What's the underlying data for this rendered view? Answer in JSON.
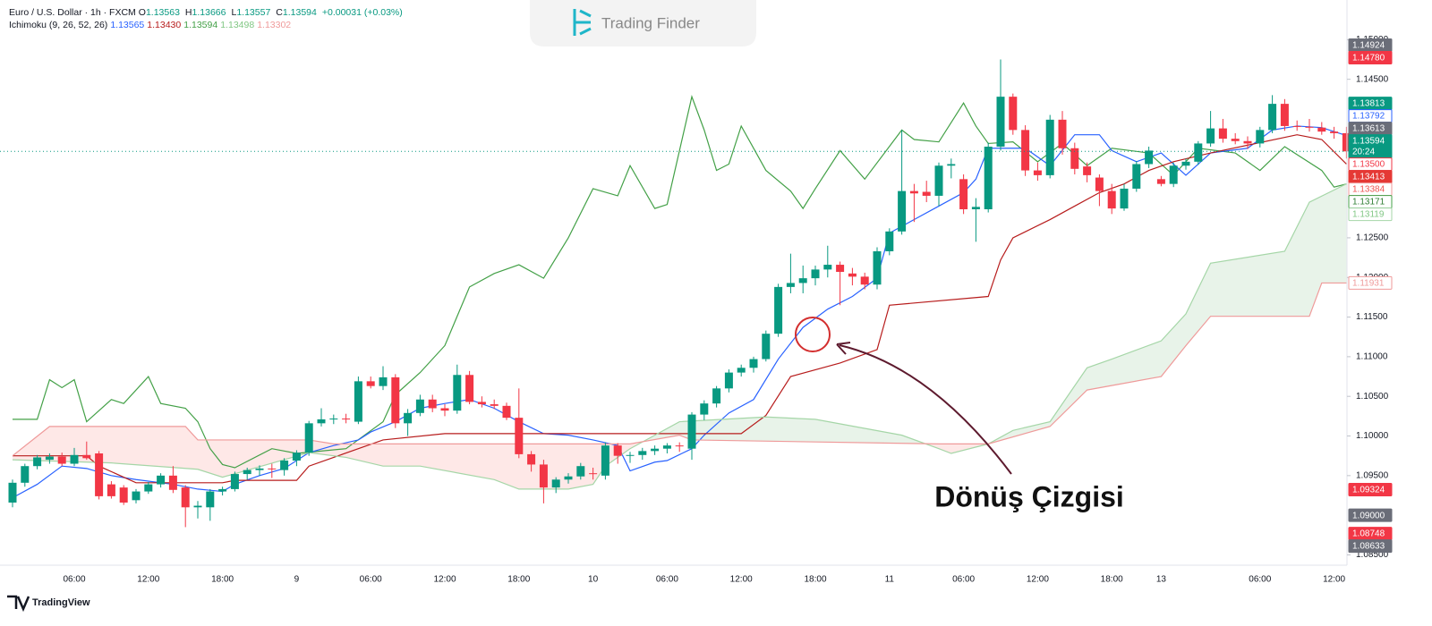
{
  "header": {
    "symbol": "Euro / U.S. Dollar · 1h · FXCM",
    "ohlc": [
      {
        "key": "O",
        "value": "1.13563"
      },
      {
        "key": "H",
        "value": "1.13666"
      },
      {
        "key": "L",
        "value": "1.13557"
      },
      {
        "key": "C",
        "value": "1.13594"
      }
    ],
    "change": "+0.00031 (+0.03%)",
    "change_color": "#089981"
  },
  "indicator": {
    "name": "Ichimoku (9, 26, 52, 26)",
    "values": [
      {
        "text": "1.13565",
        "color": "#2962ff"
      },
      {
        "text": "1.13430",
        "color": "#b71c1c"
      },
      {
        "text": "1.13594",
        "color": "#43a047"
      },
      {
        "text": "1.13498",
        "color": "#81c784"
      },
      {
        "text": "1.13302",
        "color": "#ef9a9a"
      }
    ]
  },
  "watermark": "Trading Finder",
  "footer": "TradingView",
  "chart_data": {
    "type": "candlestick",
    "up_color": "#089981",
    "down_color": "#f23645",
    "categories": [
      null,
      null,
      null,
      null,
      null,
      "06:00",
      null,
      null,
      null,
      null,
      null,
      "12:00",
      null,
      null,
      null,
      null,
      null,
      "18:00",
      null,
      null,
      null,
      null,
      null,
      "9",
      null,
      null,
      null,
      null,
      null,
      "06:00",
      null,
      null,
      null,
      null,
      null,
      "12:00",
      null,
      null,
      null,
      null,
      null,
      "18:00",
      null,
      null,
      null,
      null,
      null,
      "10",
      null,
      null,
      null,
      null,
      null,
      "06:00",
      null,
      null,
      null,
      null,
      null,
      "12:00",
      null,
      null,
      null,
      null,
      null,
      "18:00",
      null,
      null,
      null,
      null,
      null,
      "11",
      null,
      null,
      null,
      null,
      null,
      "06:00",
      null,
      null,
      null,
      null,
      null,
      "12:00",
      null,
      null,
      null,
      null,
      null,
      "18:00",
      null,
      null,
      null,
      "13",
      null,
      null,
      null,
      null,
      null,
      null,
      null,
      "06:00",
      null,
      null,
      null,
      null,
      null,
      "12:00",
      null
    ],
    "open": [
      1.0916,
      1.0941,
      1.0962,
      1.097,
      1.0974,
      1.0965,
      1.0976,
      1.0978,
      1.0939,
      1.0935,
      1.0919,
      1.093,
      1.0939,
      1.095,
      1.0935,
      1.091,
      1.091,
      1.093,
      1.0933,
      1.0952,
      1.0957,
      1.0959,
      1.0957,
      1.0969,
      1.0979,
      1.1016,
      1.1021,
      1.1022,
      1.1018,
      1.1069,
      1.1063,
      1.1074,
      1.1016,
      1.1029,
      1.1046,
      1.1035,
      1.1032,
      1.1077,
      1.1043,
      1.104,
      1.1038,
      1.1023,
      1.0977,
      1.0964,
      1.0935,
      1.0945,
      1.0949,
      1.0953,
      1.095,
      1.0988,
      1.0975,
      1.0976,
      1.0981,
      1.0984,
      1.0988,
      1.0984,
      1.1027,
      1.1041,
      1.106,
      1.108,
      1.1086,
      1.1097,
      1.1129,
      1.1188,
      1.1193,
      1.1199,
      1.121,
      1.1216,
      1.1205,
      1.1201,
      1.1191,
      1.1233,
      1.1258,
      1.1309,
      1.1308,
      1.1303,
      1.1341,
      1.1324,
      1.1286,
      1.1286,
      1.1365,
      1.1428,
      1.1386,
      1.1335,
      1.1329,
      1.1399,
      1.1363,
      1.134,
      1.1326,
      1.1309,
      1.1287,
      1.1312,
      1.1343,
      1.1324,
      1.1318,
      1.1341,
      1.1346,
      1.1369,
      1.1388,
      1.1375,
      1.1372,
      1.1369,
      1.1386,
      1.1419,
      1.1391,
      1.139,
      1.1389,
      1.1384,
      1.1382
    ],
    "high": [
      1.0945,
      1.0965,
      1.0976,
      1.0978,
      1.0979,
      1.0985,
      1.0993,
      1.0981,
      1.0943,
      1.0938,
      1.0933,
      1.0942,
      1.0953,
      1.0962,
      1.0938,
      1.0918,
      1.0933,
      1.0936,
      1.0955,
      1.096,
      1.0963,
      1.0965,
      1.0972,
      1.0982,
      1.1019,
      1.1035,
      1.1027,
      1.1028,
      1.1075,
      1.1075,
      1.1088,
      1.1078,
      1.1034,
      1.1052,
      1.1052,
      1.104,
      1.109,
      1.1082,
      1.105,
      1.1046,
      1.1042,
      1.106,
      1.0981,
      1.097,
      1.0948,
      1.0953,
      1.0966,
      1.096,
      1.0992,
      1.0991,
      1.098,
      1.0985,
      1.0988,
      1.0991,
      1.0992,
      1.103,
      1.1045,
      1.1063,
      1.1084,
      1.109,
      1.11,
      1.1133,
      1.1192,
      1.123,
      1.1215,
      1.1215,
      1.124,
      1.122,
      1.1212,
      1.1206,
      1.1238,
      1.1262,
      1.1386,
      1.1318,
      1.1322,
      1.1345,
      1.135,
      1.133,
      1.13,
      1.137,
      1.1475,
      1.1432,
      1.1392,
      1.1345,
      1.1405,
      1.141,
      1.137,
      1.1345,
      1.133,
      1.1318,
      1.1318,
      1.1347,
      1.1365,
      1.1328,
      1.1345,
      1.135,
      1.1372,
      1.141,
      1.14,
      1.1382,
      1.1378,
      1.139,
      1.143,
      1.1425,
      1.1398,
      1.14,
      1.1396,
      1.139,
      1.139
    ],
    "low": [
      1.091,
      1.0936,
      1.0958,
      1.0965,
      1.0962,
      1.0962,
      1.097,
      1.092,
      1.0921,
      1.0913,
      1.0915,
      1.0927,
      1.0935,
      1.0928,
      1.0885,
      1.0896,
      1.0893,
      1.0925,
      1.093,
      1.0945,
      1.095,
      1.0947,
      1.095,
      1.0962,
      1.0975,
      1.1012,
      1.1015,
      1.1016,
      1.1015,
      1.106,
      1.1058,
      1.101,
      1.1,
      1.1025,
      1.103,
      1.1025,
      1.1028,
      1.104,
      1.1036,
      1.1034,
      1.102,
      1.0972,
      1.0955,
      1.0915,
      1.0928,
      1.094,
      1.0945,
      1.0945,
      1.0945,
      1.0965,
      1.0966,
      1.097,
      1.0976,
      1.0978,
      1.098,
      1.097,
      1.102,
      1.1036,
      1.1055,
      1.1075,
      1.108,
      1.1094,
      1.1125,
      1.118,
      1.118,
      1.119,
      1.12,
      1.1165,
      1.119,
      1.1185,
      1.1185,
      1.1228,
      1.1254,
      1.127,
      1.1295,
      1.129,
      1.1325,
      1.128,
      1.1245,
      1.1282,
      1.136,
      1.138,
      1.1328,
      1.1322,
      1.1325,
      1.1355,
      1.133,
      1.132,
      1.129,
      1.128,
      1.1284,
      1.1308,
      1.1338,
      1.1315,
      1.1314,
      1.1336,
      1.1342,
      1.1365,
      1.137,
      1.1368,
      1.1362,
      1.1364,
      1.1382,
      1.1385,
      1.1385,
      1.1384,
      1.138,
      1.1375,
      1.135
    ],
    "close": [
      1.0941,
      1.0962,
      1.0973,
      1.0974,
      1.0965,
      1.0976,
      1.0972,
      1.0924,
      1.0924,
      1.0916,
      1.093,
      1.0939,
      1.095,
      1.0932,
      1.091,
      1.0912,
      1.093,
      1.0933,
      1.0952,
      1.0957,
      1.0959,
      1.0958,
      1.0969,
      1.0979,
      1.1016,
      1.1021,
      1.1022,
      1.1021,
      1.1069,
      1.1063,
      1.1074,
      1.1016,
      1.1029,
      1.1046,
      1.1035,
      1.1032,
      1.1077,
      1.1043,
      1.104,
      1.1038,
      1.1023,
      1.0977,
      1.0964,
      1.0935,
      1.0945,
      1.0949,
      1.0962,
      1.0952,
      1.0988,
      1.0975,
      1.0976,
      1.0981,
      1.0984,
      1.0988,
      1.0987,
      1.1027,
      1.1041,
      1.106,
      1.108,
      1.1086,
      1.1097,
      1.1129,
      1.1188,
      1.1193,
      1.1199,
      1.121,
      1.1216,
      1.1207,
      1.1201,
      1.1191,
      1.1233,
      1.1258,
      1.1309,
      1.1306,
      1.1303,
      1.1341,
      1.1343,
      1.1286,
      1.1289,
      1.1365,
      1.1428,
      1.1386,
      1.1335,
      1.1329,
      1.1399,
      1.1363,
      1.1337,
      1.1329,
      1.1309,
      1.1287,
      1.1312,
      1.1343,
      1.136,
      1.1318,
      1.1341,
      1.1346,
      1.1369,
      1.1388,
      1.1375,
      1.1372,
      1.1369,
      1.1386,
      1.1419,
      1.1391,
      1.139,
      1.1389,
      1.1384,
      1.1382,
      1.1359
    ],
    "lines": [
      {
        "color": "#43a047",
        "x": [
          0,
          2,
          3,
          4,
          5,
          6,
          8,
          9,
          11,
          12,
          14,
          15,
          16,
          17,
          18,
          21,
          23,
          27,
          30,
          31,
          33,
          35,
          37,
          39,
          41,
          43,
          45,
          47,
          49,
          50,
          52,
          53,
          55,
          56,
          57,
          58,
          59,
          61,
          63,
          64,
          65,
          67,
          69,
          72,
          73,
          75,
          77,
          78,
          79,
          81,
          83,
          85,
          87,
          89,
          92,
          94,
          96,
          99,
          101,
          103,
          106,
          107,
          108
        ],
        "values": [
          1.1021,
          1.1021,
          1.1071,
          1.1061,
          1.1071,
          1.1018,
          1.1046,
          1.1041,
          1.1075,
          1.1041,
          1.1035,
          1.1018,
          1.0984,
          1.0964,
          1.096,
          1.0984,
          1.0978,
          1.0984,
          1.1018,
          1.1052,
          1.108,
          1.1114,
          1.1188,
          1.1205,
          1.1216,
          1.1199,
          1.125,
          1.1312,
          1.1303,
          1.1341,
          1.1287,
          1.1292,
          1.1428,
          1.1386,
          1.1335,
          1.1343,
          1.1391,
          1.1335,
          1.1309,
          1.1287,
          1.1312,
          1.136,
          1.1324,
          1.1386,
          1.1374,
          1.1371,
          1.142,
          1.1391,
          1.1369,
          1.1371,
          1.1346,
          1.1369,
          1.1341,
          1.1363,
          1.1357,
          1.1329,
          1.1363,
          1.1357,
          1.1335,
          1.1365,
          1.1335,
          1.1314,
          1.1318
        ]
      },
      {
        "color": "#2962ff",
        "x": [
          0,
          2,
          4,
          6,
          8,
          10,
          13,
          15,
          17,
          18,
          20,
          22,
          24,
          26,
          28,
          29,
          31,
          33,
          35,
          37,
          39,
          41,
          43,
          45,
          47,
          49,
          50,
          52,
          53,
          55,
          56,
          58,
          60,
          62,
          64,
          66,
          68,
          70,
          71,
          73,
          75,
          77,
          78,
          79,
          82,
          84,
          86,
          88,
          89,
          91,
          93,
          95,
          97,
          100,
          102,
          104,
          106,
          108
        ],
        "values": [
          1.0922,
          1.0939,
          1.0962,
          1.0959,
          1.095,
          1.0945,
          1.0939,
          1.0933,
          1.093,
          1.0939,
          1.095,
          1.0959,
          1.0979,
          1.0988,
          1.0995,
          1.1005,
          1.1018,
          1.1035,
          1.1041,
          1.1046,
          1.1035,
          1.1018,
          1.1003,
          1.1001,
          1.0995,
          1.0988,
          1.0956,
          1.0967,
          1.0969,
          1.0984,
          1.1001,
          1.1029,
          1.1046,
          1.1097,
          1.1137,
          1.116,
          1.1176,
          1.1199,
          1.1256,
          1.1273,
          1.129,
          1.1307,
          1.1324,
          1.1363,
          1.1363,
          1.1341,
          1.138,
          1.138,
          1.136,
          1.1346,
          1.1357,
          1.1329,
          1.1357,
          1.1363,
          1.1386,
          1.1391,
          1.1389,
          1.1379
        ]
      },
      {
        "color": "#b71c1c",
        "x": [
          0,
          6,
          7,
          10,
          17,
          18,
          23,
          24,
          28,
          30,
          35,
          55,
          59,
          61,
          63,
          67,
          70,
          71,
          79,
          80,
          81,
          84,
          86,
          88,
          90,
          92,
          94,
          97,
          104,
          106,
          108
        ],
        "values": [
          1.0975,
          1.0975,
          1.0962,
          1.0941,
          1.0941,
          1.0944,
          1.0944,
          1.0962,
          1.0984,
          1.0995,
          1.1003,
          1.1003,
          1.1003,
          1.1026,
          1.1075,
          1.1092,
          1.1109,
          1.1165,
          1.1176,
          1.1222,
          1.125,
          1.1273,
          1.129,
          1.1307,
          1.1318,
          1.1335,
          1.1346,
          1.1357,
          1.138,
          1.1374,
          1.1343
        ]
      },
      {
        "color": "#a5d6a7",
        "x": [
          0,
          8,
          15,
          17,
          24,
          27,
          30,
          33,
          39,
          41,
          45,
          47,
          48,
          50,
          54,
          61,
          65,
          72,
          75,
          76,
          79,
          81,
          84,
          87,
          89,
          93,
          95,
          97,
          103,
          105,
          108
        ],
        "values": [
          1.097,
          1.0966,
          1.0958,
          1.0948,
          1.0979,
          1.0973,
          1.0962,
          1.0962,
          1.0945,
          1.0933,
          1.0933,
          1.0939,
          1.0962,
          1.0984,
          1.1018,
          1.1024,
          1.1021,
          1.1001,
          1.0984,
          1.0978,
          1.099,
          1.1007,
          1.1018,
          1.1086,
          1.1097,
          1.112,
          1.1154,
          1.1218,
          1.1233,
          1.1295,
          1.1318
        ]
      },
      {
        "color": "#ef9a9a",
        "x": [
          0,
          3,
          14,
          15,
          24,
          26,
          47,
          50,
          54,
          55,
          75,
          79,
          84,
          87,
          93,
          95,
          97,
          105,
          106,
          108
        ],
        "values": [
          1.0975,
          1.1012,
          1.1012,
          1.0995,
          1.0995,
          1.099,
          1.099,
          1.099,
          1.1001,
          1.0995,
          1.099,
          1.099,
          1.1012,
          1.1058,
          1.1075,
          1.1114,
          1.1151,
          1.1151,
          1.1193,
          1.1193
        ]
      }
    ],
    "cloud_colors": [
      "rgba(67,160,71,0.12)",
      "rgba(244,67,54,0.12)"
    ],
    "ylim": [
      1.0837,
      1.155
    ],
    "yticks": [
      {
        "value": 1.15,
        "label": "1.15000"
      },
      {
        "value": 1.145,
        "label": "1.14500"
      },
      {
        "value": 1.125,
        "label": "1.12500"
      },
      {
        "value": 1.12,
        "label": "1.12000"
      },
      {
        "value": 1.115,
        "label": "1.11500"
      },
      {
        "value": 1.11,
        "label": "1.11000"
      },
      {
        "value": 1.105,
        "label": "1.10500"
      },
      {
        "value": 1.1,
        "label": "1.10000"
      },
      {
        "value": 1.095,
        "label": "1.09500"
      },
      {
        "value": 1.085,
        "label": "1.08500"
      }
    ],
    "last_line_color": "#089981",
    "price_tags": [
      {
        "value": 1.14924,
        "label": "1.14924",
        "bg": "#6a6d78",
        "fg": "#ffffff",
        "border": "#6a6d78"
      },
      {
        "value": 1.1478,
        "label": "1.14780",
        "bg": "#f23645",
        "fg": "#ffffff",
        "border": "#f23645"
      },
      {
        "value": 1.13813,
        "label": "1.13813",
        "bg": "#089981",
        "fg": "#ffffff",
        "border": "#089981"
      },
      {
        "value": 1.13792,
        "label": "1.13792",
        "bg": "#ffffff",
        "fg": "#2962ff",
        "border": "#2962ff"
      },
      {
        "value": 1.13613,
        "label": "1.13613",
        "bg": "#6a6d78",
        "fg": "#ffffff",
        "border": "#6a6d78"
      },
      {
        "value": 1.13594,
        "label": "1.13594",
        "sub": "20:24",
        "bg": "#089981",
        "fg": "#ffffff",
        "border": "#089981"
      },
      {
        "value": 1.135,
        "label": "1.13500",
        "bg": "#ffffff",
        "fg": "#f23645",
        "border": "#f23645"
      },
      {
        "value": 1.13413,
        "label": "1.13413",
        "bg": "#e53935",
        "fg": "#ffffff",
        "border": "#e53935"
      },
      {
        "value": 1.13384,
        "label": "1.13384",
        "bg": "#ffffff",
        "fg": "#ef5350",
        "border": "#ef9a9a"
      },
      {
        "value": 1.13171,
        "label": "1.13171",
        "bg": "#ffffff",
        "fg": "#2e7d32",
        "border": "#43a047"
      },
      {
        "value": 1.13119,
        "label": "1.13119",
        "bg": "#ffffff",
        "fg": "#81c784",
        "border": "#a5d6a7"
      },
      {
        "value": 1.11931,
        "label": "1.11931",
        "bg": "#ffffff",
        "fg": "#ef9a9a",
        "border": "#ef9a9a"
      },
      {
        "value": 1.09324,
        "label": "1.09324",
        "bg": "#f23645",
        "fg": "#ffffff",
        "border": "#f23645"
      },
      {
        "value": 1.09,
        "label": "1.09000",
        "bg": "#6a6d78",
        "fg": "#ffffff",
        "border": "#6a6d78"
      },
      {
        "value": 1.08748,
        "label": "1.08748",
        "bg": "#f23645",
        "fg": "#ffffff",
        "border": "#f23645"
      },
      {
        "value": 1.08633,
        "label": "1.08633",
        "bg": "#6a6d78",
        "fg": "#ffffff",
        "border": "#6a6d78"
      }
    ],
    "annotation": "Dönüş Çizgisi"
  }
}
